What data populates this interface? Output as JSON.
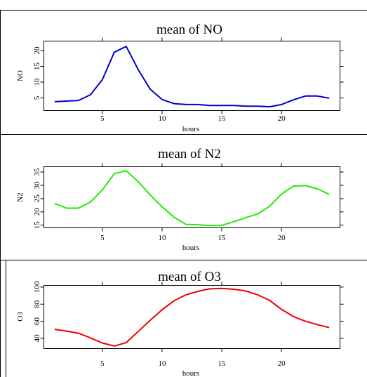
{
  "chart_data": [
    {
      "type": "line",
      "title": "mean of NO",
      "xlabel": "hours",
      "ylabel": "NO",
      "color": "#0000cc",
      "x": [
        1,
        2,
        3,
        4,
        5,
        6,
        7,
        8,
        9,
        10,
        11,
        12,
        13,
        14,
        15,
        16,
        17,
        18,
        19,
        20,
        21,
        22,
        23,
        24
      ],
      "values": [
        3.8,
        4.0,
        4.2,
        6.0,
        10.8,
        19.5,
        21.3,
        14.0,
        7.8,
        4.5,
        3.2,
        2.9,
        2.9,
        2.6,
        2.6,
        2.6,
        2.4,
        2.4,
        2.2,
        2.9,
        4.4,
        5.6,
        5.6,
        4.9
      ],
      "xlim": [
        0.1,
        24.9
      ],
      "ylim": [
        1.0,
        23.0
      ],
      "xticks": [
        5,
        10,
        15,
        20
      ],
      "yticks": [
        5,
        10,
        15,
        20
      ],
      "grid": false
    },
    {
      "type": "line",
      "title": "mean of N2",
      "xlabel": "hours",
      "ylabel": "N2",
      "color": "#22ee00",
      "x": [
        1,
        2,
        3,
        4,
        5,
        6,
        7,
        8,
        9,
        10,
        11,
        12,
        13,
        14,
        15,
        16,
        17,
        18,
        19,
        20,
        21,
        22,
        23,
        24
      ],
      "values": [
        23.2,
        21.4,
        21.4,
        23.7,
        28.3,
        34.4,
        35.5,
        31.4,
        26.4,
        21.9,
        18.0,
        15.3,
        15.1,
        14.9,
        14.9,
        16.3,
        17.8,
        19.2,
        22.1,
        26.7,
        29.7,
        29.9,
        28.7,
        26.6
      ],
      "xlim": [
        0.1,
        24.9
      ],
      "ylim": [
        14.0,
        37.0
      ],
      "xticks": [
        5,
        10,
        15,
        20
      ],
      "yticks": [
        15,
        20,
        25,
        30,
        35
      ],
      "grid": false
    },
    {
      "type": "line",
      "title": "mean of O3",
      "xlabel": "hours",
      "ylabel": "O3",
      "color": "#ee0000",
      "x": [
        1,
        2,
        3,
        4,
        5,
        6,
        7,
        8,
        9,
        10,
        11,
        12,
        13,
        14,
        15,
        16,
        17,
        18,
        19,
        20,
        21,
        22,
        23,
        24
      ],
      "values": [
        50.5,
        48.5,
        46.0,
        40.5,
        34.5,
        31.0,
        35.0,
        48.0,
        61.0,
        73.5,
        84.0,
        91.0,
        95.0,
        98.0,
        98.5,
        97.5,
        95.5,
        91.0,
        84.5,
        74.0,
        65.5,
        60.0,
        56.0,
        52.5
      ],
      "xlim": [
        0.1,
        24.9
      ],
      "ylim": [
        28.0,
        102.0
      ],
      "xticks": [
        5,
        10,
        15,
        20
      ],
      "yticks": [
        40,
        60,
        80,
        100
      ],
      "grid": false
    }
  ]
}
